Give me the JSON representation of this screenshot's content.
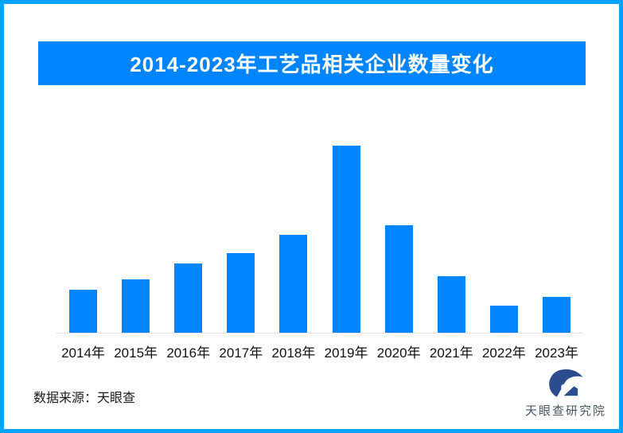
{
  "page": {
    "background": "#FFFFFF",
    "border_color": "#00A2FF"
  },
  "header": {
    "title": "2014-2023年工艺品相关企业数量变化",
    "background": "#0085FF",
    "text_color": "#FFFFFF"
  },
  "chart_data": {
    "type": "bar",
    "title": "2014-2023年工艺品相关企业数量变化",
    "categories": [
      "2014年",
      "2015年",
      "2016年",
      "2017年",
      "2018年",
      "2019年",
      "2020年",
      "2021年",
      "2022年",
      "2023年"
    ],
    "values": [
      23.0,
      28.5,
      37.0,
      42.6,
      52.3,
      100.0,
      57.4,
      30.2,
      14.5,
      19.1
    ],
    "value_note": "chart displays no numeric axis or data labels; values are relative bar heights with 2019 = 100",
    "bar_color": "#0085FF",
    "axis_line_color": "#E2E2E2",
    "xlabel": "",
    "ylabel": "",
    "ylim": [
      0,
      107
    ],
    "grid": false,
    "legend": false
  },
  "footer": {
    "source_label": "数据来源：天眼查"
  },
  "brand": {
    "name": "天眼查研究院",
    "logo_icon": "tianyancha-eye-logo",
    "mark_color": "#2B4D8E",
    "text_color": "#4A5764"
  }
}
